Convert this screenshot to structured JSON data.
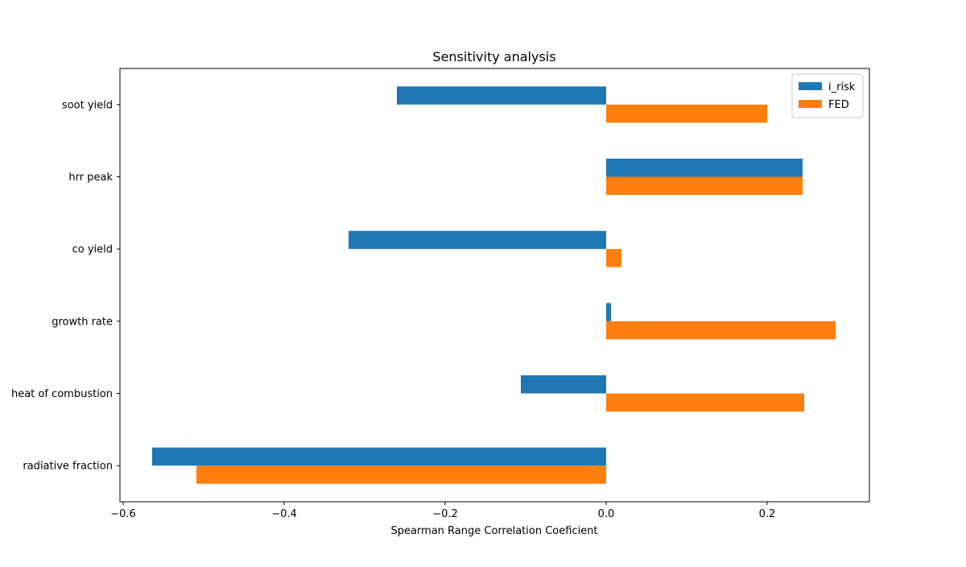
{
  "chart_data": {
    "type": "bar",
    "orientation": "horizontal",
    "title": "Sensitivity analysis",
    "xlabel": "Spearman Range Correlation Coeficient",
    "ylabel": "",
    "categories": [
      "soot yield",
      "hrr peak",
      "co yield",
      "growth rate",
      "heat of combustion",
      "radiative fraction"
    ],
    "series": [
      {
        "name": "i_risk",
        "color": "#1f77b4",
        "values": [
          -0.26,
          0.244,
          -0.32,
          0.006,
          -0.106,
          -0.564
        ]
      },
      {
        "name": "FED",
        "color": "#ff7f0e",
        "values": [
          0.2,
          0.244,
          0.019,
          0.285,
          0.246,
          -0.509
        ]
      }
    ],
    "xlim": [
      -0.604,
      0.327
    ],
    "xticks": [
      {
        "value": -0.6,
        "label": "−0.6"
      },
      {
        "value": -0.4,
        "label": "−0.4"
      },
      {
        "value": -0.2,
        "label": "−0.2"
      },
      {
        "value": 0.0,
        "label": "0.0"
      },
      {
        "value": 0.2,
        "label": "0.2"
      }
    ],
    "grid": false,
    "legend_position": "top-right"
  }
}
